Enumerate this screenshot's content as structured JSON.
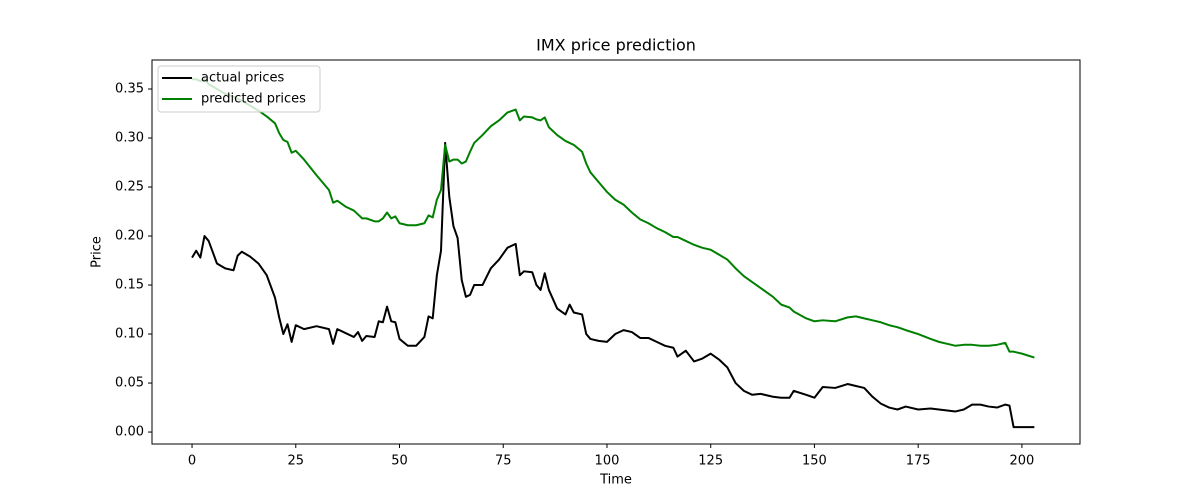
{
  "chart_data": {
    "type": "line",
    "title": "IMX price prediction",
    "xlabel": "Time",
    "ylabel": "Price",
    "x": [
      0,
      1,
      2,
      3,
      4,
      6,
      8,
      10,
      11,
      12,
      14,
      16,
      18,
      20,
      21,
      22,
      23,
      24,
      25,
      27,
      30,
      33,
      34,
      35,
      37,
      39,
      40,
      41,
      42,
      44,
      45,
      46,
      47,
      48,
      49,
      50,
      52,
      54,
      56,
      57,
      58,
      59,
      60,
      61,
      62,
      63,
      64,
      65,
      66,
      67,
      68,
      70,
      72,
      74,
      76,
      78,
      79,
      80,
      82,
      83,
      84,
      85,
      86,
      88,
      90,
      91,
      92,
      94,
      95,
      96,
      98,
      100,
      102,
      104,
      106,
      108,
      110,
      112,
      114,
      116,
      117,
      119,
      121,
      123,
      125,
      127,
      129,
      131,
      133,
      135,
      137,
      140,
      142,
      144,
      145,
      148,
      150,
      152,
      155,
      158,
      160,
      162,
      164,
      166,
      168,
      170,
      172,
      175,
      178,
      180,
      182,
      184,
      186,
      188,
      190,
      192,
      194,
      196,
      197,
      198,
      200,
      203
    ],
    "series": [
      {
        "name": "actual prices",
        "color": "#000000",
        "values": [
          0.178,
          0.185,
          0.178,
          0.2,
          0.195,
          0.172,
          0.167,
          0.165,
          0.18,
          0.184,
          0.179,
          0.172,
          0.16,
          0.137,
          0.117,
          0.1,
          0.11,
          0.092,
          0.109,
          0.105,
          0.108,
          0.105,
          0.09,
          0.105,
          0.101,
          0.097,
          0.102,
          0.093,
          0.098,
          0.097,
          0.113,
          0.112,
          0.128,
          0.113,
          0.112,
          0.095,
          0.088,
          0.088,
          0.097,
          0.118,
          0.116,
          0.16,
          0.185,
          0.295,
          0.24,
          0.21,
          0.198,
          0.155,
          0.138,
          0.14,
          0.15,
          0.15,
          0.167,
          0.176,
          0.188,
          0.192,
          0.16,
          0.164,
          0.163,
          0.15,
          0.145,
          0.162,
          0.145,
          0.126,
          0.12,
          0.13,
          0.122,
          0.12,
          0.1,
          0.095,
          0.093,
          0.092,
          0.1,
          0.104,
          0.102,
          0.096,
          0.096,
          0.092,
          0.088,
          0.086,
          0.077,
          0.083,
          0.072,
          0.075,
          0.08,
          0.074,
          0.066,
          0.05,
          0.042,
          0.038,
          0.039,
          0.036,
          0.035,
          0.035,
          0.042,
          0.038,
          0.035,
          0.046,
          0.045,
          0.049,
          0.047,
          0.045,
          0.036,
          0.029,
          0.025,
          0.023,
          0.026,
          0.023,
          0.024,
          0.023,
          0.022,
          0.021,
          0.023,
          0.028,
          0.028,
          0.026,
          0.025,
          0.028,
          0.027,
          0.005,
          0.005,
          0.005
        ]
      },
      {
        "name": "predicted prices",
        "color": "#008000",
        "values": [
          0.36,
          0.36,
          0.358,
          0.36,
          0.355,
          0.35,
          0.345,
          0.342,
          0.34,
          0.338,
          0.333,
          0.328,
          0.322,
          0.315,
          0.305,
          0.298,
          0.296,
          0.285,
          0.287,
          0.278,
          0.262,
          0.247,
          0.234,
          0.236,
          0.23,
          0.226,
          0.222,
          0.218,
          0.218,
          0.215,
          0.215,
          0.218,
          0.224,
          0.218,
          0.22,
          0.213,
          0.211,
          0.211,
          0.213,
          0.221,
          0.219,
          0.237,
          0.247,
          0.293,
          0.276,
          0.278,
          0.278,
          0.274,
          0.276,
          0.286,
          0.295,
          0.303,
          0.312,
          0.318,
          0.326,
          0.329,
          0.318,
          0.322,
          0.321,
          0.319,
          0.318,
          0.321,
          0.311,
          0.303,
          0.297,
          0.295,
          0.293,
          0.286,
          0.274,
          0.265,
          0.255,
          0.245,
          0.237,
          0.232,
          0.224,
          0.217,
          0.213,
          0.208,
          0.204,
          0.199,
          0.199,
          0.195,
          0.191,
          0.188,
          0.186,
          0.181,
          0.176,
          0.167,
          0.159,
          0.153,
          0.147,
          0.138,
          0.13,
          0.127,
          0.123,
          0.116,
          0.113,
          0.114,
          0.113,
          0.117,
          0.118,
          0.116,
          0.114,
          0.112,
          0.109,
          0.107,
          0.104,
          0.1,
          0.095,
          0.092,
          0.09,
          0.088,
          0.089,
          0.089,
          0.088,
          0.088,
          0.089,
          0.091,
          0.082,
          0.082,
          0.08,
          0.076
        ]
      }
    ],
    "xlim": [
      -9.65,
      214
    ],
    "ylim": [
      -0.0122,
      0.3796
    ],
    "xticks": [
      0,
      25,
      50,
      75,
      100,
      125,
      150,
      175,
      200
    ],
    "yticks": [
      {
        "value": 0,
        "label": "0.00"
      },
      0.05,
      {
        "value": 0.1,
        "label": "0.10"
      },
      0.15,
      {
        "value": 0.2,
        "label": "0.20"
      },
      0.25,
      {
        "value": 0.3,
        "label": "0.30"
      },
      0.35
    ],
    "grid": false,
    "legend": "upper left"
  }
}
